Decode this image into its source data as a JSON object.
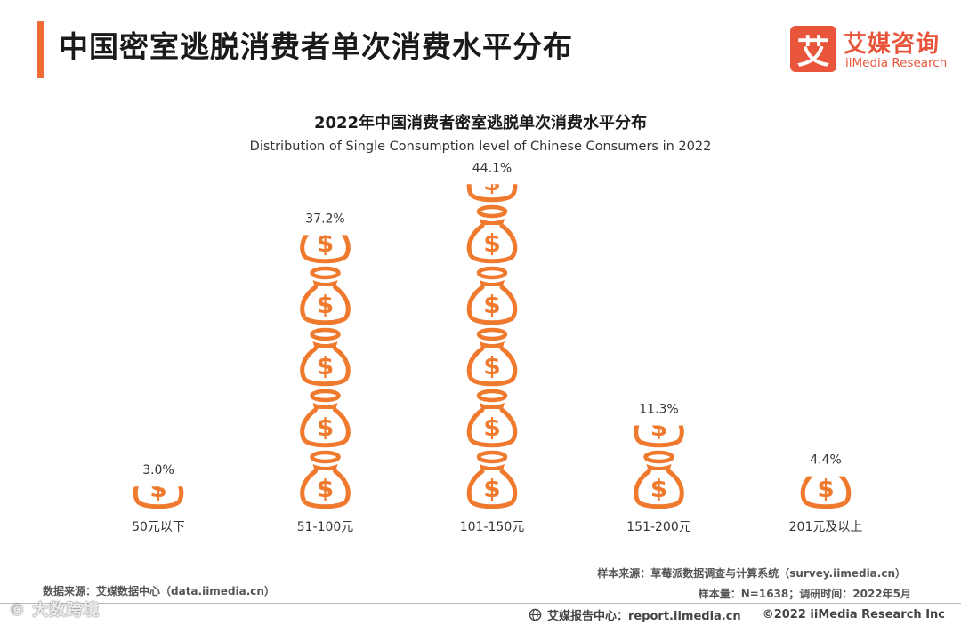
{
  "header": {
    "title": "中国密室逃脱消费者单次消费水平分布",
    "brand_mark": "艾",
    "brand_cn": "艾媒咨询",
    "brand_en": "iiMedia Research"
  },
  "colors": {
    "accent": "#ef6b34",
    "icon": "#ef7a2e",
    "brand": "#e9553b"
  },
  "chart_data": {
    "type": "bar",
    "title": "2022年中国消费者密室逃脱单次消费水平分布",
    "subtitle": "Distribution of Single Consumption level of Chinese Consumers in 2022",
    "categories": [
      "50元以下",
      "51-100元",
      "101-150元",
      "151-200元",
      "201元及以上"
    ],
    "values": [
      3.0,
      37.2,
      44.1,
      11.3,
      4.4
    ],
    "value_labels": [
      "3.0%",
      "37.2%",
      "44.1%",
      "11.3%",
      "4.4%"
    ],
    "unit": "%",
    "mark": "money-bag-icon",
    "ylim": [
      0,
      50
    ]
  },
  "footer": {
    "source_left": "数据来源：艾媒数据中心（data.iimedia.cn）",
    "sample_source": "样本来源：草莓派数据调查与计算系统（survey.iimedia.cn）",
    "sample_info": "样本量：N=1638；调研时间：2022年5月",
    "report_center": "艾媒报告中心：report.iimedia.cn",
    "copyright": "©2022  iiMedia Research  Inc",
    "watermark": "© 大数跨境"
  }
}
